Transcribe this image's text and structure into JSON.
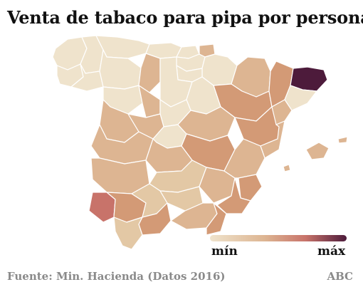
{
  "header": {
    "title": "Venta de tabaco para pipa por persona"
  },
  "legend": {
    "min_label": "mín",
    "max_label": "máx",
    "color_min": "#efe3cc",
    "color_max": "#4d1b3b"
  },
  "footer": {
    "source": "Fuente: Min. Hacienda (Datos 2016)",
    "brand": "ABC"
  },
  "colors": {
    "level_1": "#efe3cc",
    "level_2": "#e3c8a5",
    "level_3": "#ddb592",
    "level_4": "#d39a76",
    "level_5": "#c8736a",
    "level_6": "#4d1b3b",
    "province_border": "#ffffff"
  },
  "map_data": {
    "type": "choropleth",
    "region": "Spain (provinces)",
    "scale": "sequential, mín to máx",
    "highlights": [
      {
        "province": "Girona",
        "level": 6
      },
      {
        "province": "Huelva",
        "level": 5
      },
      {
        "province": "Teruel",
        "level": 4
      },
      {
        "province": "Zaragoza",
        "level": 4
      },
      {
        "province": "Cuenca",
        "level": 4
      },
      {
        "province": "Málaga",
        "level": 4
      },
      {
        "province": "Sevilla",
        "level": 4
      },
      {
        "province": "Murcia",
        "level": 4
      },
      {
        "province": "Alicante",
        "level": 4
      }
    ]
  }
}
